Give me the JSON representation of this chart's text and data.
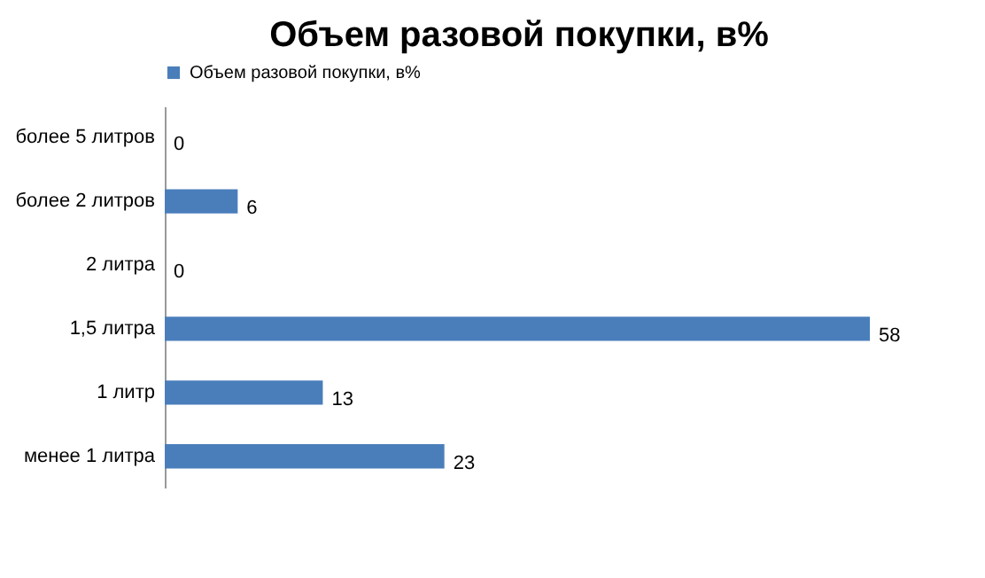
{
  "chart_data": {
    "type": "bar",
    "orientation": "horizontal",
    "title": "Объем разовой покупки, в%",
    "categories": [
      "более 5 литров",
      "более 2 литров",
      "2 литра",
      "1,5 литра",
      "1 литр",
      "менее 1 литра"
    ],
    "series": [
      {
        "name": "Объем разовой покупки, в%",
        "color": "#4a7ebb",
        "values": [
          0,
          6,
          0,
          58,
          13,
          23
        ]
      }
    ],
    "data_labels": true,
    "legend": "top",
    "grid": false
  }
}
